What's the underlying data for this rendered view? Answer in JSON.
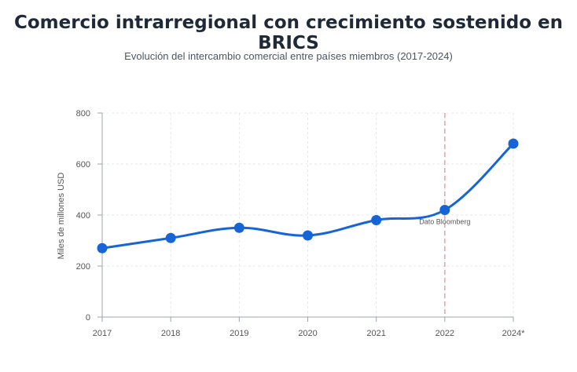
{
  "chart_data": {
    "type": "line",
    "title": "Comercio intrarregional con crecimiento sostenido en BRICS",
    "subtitle": "Evolución del intercambio comercial entre países miembros (2017-2024)",
    "ylabel": "Miles de millones USD",
    "xlabel": "",
    "categories": [
      "2017",
      "2018",
      "2019",
      "2020",
      "2021",
      "2022",
      "2024*"
    ],
    "values": [
      270,
      310,
      350,
      320,
      380,
      420,
      680
    ],
    "ylim": [
      0,
      800
    ],
    "yticks": [
      0,
      200,
      400,
      600,
      800
    ],
    "grid": true,
    "line_color": "#1565d8",
    "annotation": {
      "category": "2022",
      "label": "Dato Bloomberg",
      "line_color": "#e8a0a8"
    }
  }
}
